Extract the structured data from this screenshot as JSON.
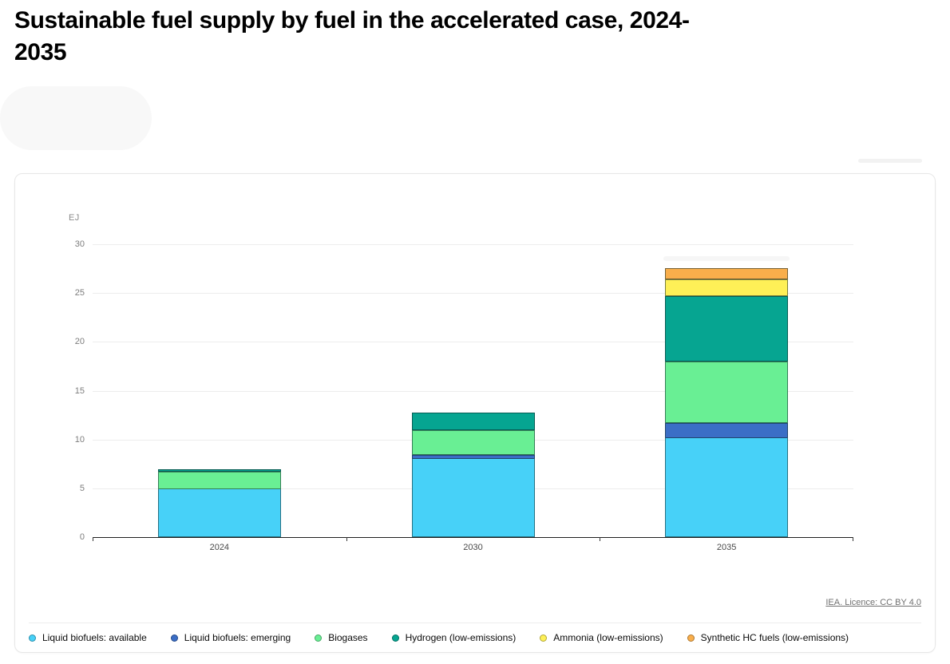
{
  "page": {
    "title": "Sustainable fuel supply by fuel in the accelerated case, 2024-2035"
  },
  "chart": {
    "source_link": "IEA. Licence: CC BY 4.0"
  },
  "chart_data": {
    "type": "bar",
    "stacked": true,
    "title": "Sustainable fuel supply by fuel in the accelerated case, 2024-2035",
    "xlabel": "",
    "ylabel": "EJ",
    "ylim": [
      0,
      30
    ],
    "yticks": [
      0,
      5,
      10,
      15,
      20,
      25,
      30
    ],
    "grid": true,
    "legend_position": "bottom",
    "categories": [
      "2024",
      "2030",
      "2035"
    ],
    "series": [
      {
        "name": "Liquid biofuels: available",
        "color": "#47d1f8",
        "values": [
          5.0,
          8.1,
          10.2
        ]
      },
      {
        "name": "Liquid biofuels: emerging",
        "color": "#3b6ec6",
        "values": [
          0,
          0.4,
          1.6
        ]
      },
      {
        "name": "Biogases",
        "color": "#69ef94",
        "values": [
          1.8,
          2.5,
          6.3
        ]
      },
      {
        "name": "Hydrogen (low-emissions)",
        "color": "#06a591",
        "values": [
          0.2,
          1.8,
          6.7
        ]
      },
      {
        "name": "Ammonia (low-emissions)",
        "color": "#fef057",
        "values": [
          0,
          0,
          1.7
        ]
      },
      {
        "name": "Synthetic HC fuels (low-emissions)",
        "color": "#f9ae4b",
        "values": [
          0,
          0,
          1.1
        ]
      }
    ]
  }
}
